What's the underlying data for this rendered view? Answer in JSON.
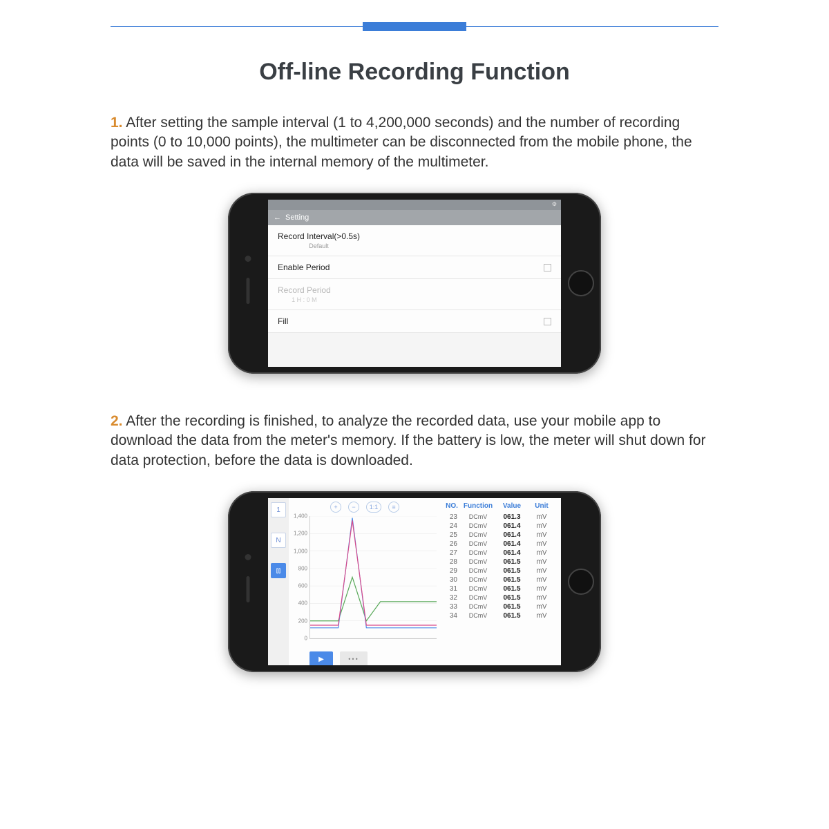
{
  "colors": {
    "accent": "#3b7dd8",
    "title": "#3a3f44",
    "body_text": "#333333",
    "step_number": "#d98b2e",
    "phone_body": "#1a1a1a",
    "chart_line1": "#d94a8a",
    "chart_line2": "#58a858",
    "chart_line3": "#4b8ae8",
    "grid": "#e8e8e8"
  },
  "title": "Off-line Recording Function",
  "steps": {
    "s1": {
      "num": "1.",
      "text": "After setting the sample interval (1 to 4,200,000 seconds) and the number of recording points (0 to 10,000 points), the multimeter can be disconnected from the mobile phone, the data will be saved in the internal memory of the multimeter."
    },
    "s2": {
      "num": "2.",
      "text": "After the recording is finished, to analyze the recorded data, use your mobile app to download the data from the meter's memory. If the battery is low, the meter will shut down for data protection, before the data is downloaded."
    }
  },
  "settings_screen": {
    "status_left": "",
    "app_title": "Setting",
    "row1_label": "Record Interval(>0.5s)",
    "row1_sub": "Default",
    "row2_label": "Enable Period",
    "row3_label": "Record Period",
    "row3_sub": "1 H : 0 M",
    "row4_label": "Fill"
  },
  "chart_screen": {
    "y_ticks": [
      "1,400",
      "1,200",
      "1,000",
      "800",
      "600",
      "400",
      "200",
      "0"
    ],
    "y_max": 1400,
    "x_count": 10,
    "side_icons": [
      "1",
      "N",
      "⫾⫾"
    ],
    "toolbar": [
      "+",
      "−",
      "1:1",
      "≡"
    ],
    "line1": [
      150,
      150,
      150,
      1350,
      150,
      150,
      150,
      150,
      150,
      150
    ],
    "line2": [
      200,
      200,
      200,
      700,
      200,
      420,
      420,
      420,
      420,
      420
    ],
    "line3": [
      120,
      120,
      120,
      1380,
      120,
      120,
      120,
      120,
      120,
      120
    ],
    "table": {
      "headers": [
        "NO.",
        "Function",
        "Value",
        "Unit"
      ],
      "rows": [
        {
          "no": "23",
          "fn": "DCmV",
          "val": "061.3",
          "unit": "mV"
        },
        {
          "no": "24",
          "fn": "DCmV",
          "val": "061.4",
          "unit": "mV"
        },
        {
          "no": "25",
          "fn": "DCmV",
          "val": "061.4",
          "unit": "mV"
        },
        {
          "no": "26",
          "fn": "DCmV",
          "val": "061.4",
          "unit": "mV"
        },
        {
          "no": "27",
          "fn": "DCmV",
          "val": "061.4",
          "unit": "mV"
        },
        {
          "no": "28",
          "fn": "DCmV",
          "val": "061.5",
          "unit": "mV"
        },
        {
          "no": "29",
          "fn": "DCmV",
          "val": "061.5",
          "unit": "mV"
        },
        {
          "no": "30",
          "fn": "DCmV",
          "val": "061.5",
          "unit": "mV"
        },
        {
          "no": "31",
          "fn": "DCmV",
          "val": "061.5",
          "unit": "mV"
        },
        {
          "no": "32",
          "fn": "DCmV",
          "val": "061.5",
          "unit": "mV"
        },
        {
          "no": "33",
          "fn": "DCmV",
          "val": "061.5",
          "unit": "mV"
        },
        {
          "no": "34",
          "fn": "DCmV",
          "val": "061.5",
          "unit": "mV"
        }
      ]
    }
  }
}
